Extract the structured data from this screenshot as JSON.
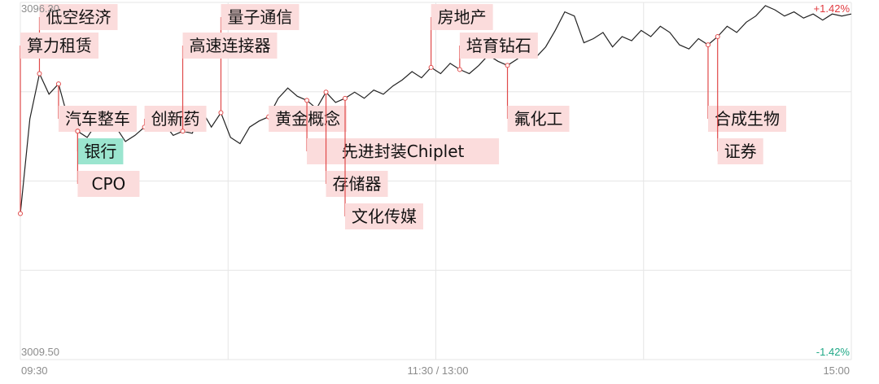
{
  "chart_data": {
    "type": "line",
    "y_top_label": "3096.30",
    "y_bottom_label": "3009.50",
    "pct_top_label": "+1.42%",
    "pct_bottom_label": "-1.42%",
    "x_labels": [
      "09:30",
      "11:30 / 13:00",
      "15:00"
    ],
    "ylim": [
      3009.5,
      3096.3
    ],
    "series": [
      {
        "color": "#222222",
        "points": [
          [
            0,
            3045.0
          ],
          [
            1,
            3068.0
          ],
          [
            2,
            3079.0
          ],
          [
            3,
            3074.0
          ],
          [
            4,
            3076.5
          ],
          [
            5,
            3068.0
          ],
          [
            6,
            3065.0
          ],
          [
            7,
            3063.5
          ],
          [
            8,
            3067.0
          ],
          [
            9,
            3065.0
          ],
          [
            10,
            3066.0
          ],
          [
            11,
            3062.5
          ],
          [
            12,
            3064.0
          ],
          [
            13,
            3066.0
          ],
          [
            14,
            3065.5
          ],
          [
            15,
            3067.0
          ],
          [
            16,
            3064.0
          ],
          [
            17,
            3065.0
          ],
          [
            18,
            3064.5
          ],
          [
            19,
            3070.0
          ],
          [
            20,
            3066.0
          ],
          [
            21,
            3069.5
          ],
          [
            22,
            3063.5
          ],
          [
            23,
            3062.0
          ],
          [
            24,
            3066.0
          ],
          [
            25,
            3067.5
          ],
          [
            26,
            3068.5
          ],
          [
            27,
            3073.0
          ],
          [
            28,
            3075.5
          ],
          [
            29,
            3073.5
          ],
          [
            30,
            3072.5
          ],
          [
            31,
            3070.5
          ],
          [
            32,
            3074.5
          ],
          [
            33,
            3072.0
          ],
          [
            34,
            3073.0
          ],
          [
            35,
            3074.5
          ],
          [
            36,
            3073.0
          ],
          [
            37,
            3075.0
          ],
          [
            38,
            3074.0
          ],
          [
            39,
            3076.0
          ],
          [
            40,
            3077.5
          ],
          [
            41,
            3079.5
          ],
          [
            42,
            3078.0
          ],
          [
            43,
            3080.5
          ],
          [
            44,
            3079.0
          ],
          [
            45,
            3081.5
          ],
          [
            46,
            3080.0
          ],
          [
            47,
            3079.0
          ],
          [
            48,
            3081.0
          ],
          [
            49,
            3083.5
          ],
          [
            50,
            3082.0
          ],
          [
            51,
            3081.0
          ],
          [
            52,
            3082.5
          ],
          [
            53,
            3084.5
          ],
          [
            54,
            3083.0
          ],
          [
            55,
            3085.5
          ],
          [
            56,
            3089.5
          ],
          [
            57,
            3094.0
          ],
          [
            58,
            3093.0
          ],
          [
            59,
            3086.5
          ],
          [
            60,
            3087.5
          ],
          [
            61,
            3089.0
          ],
          [
            62,
            3085.5
          ],
          [
            63,
            3088.0
          ],
          [
            64,
            3087.0
          ],
          [
            65,
            3089.5
          ],
          [
            66,
            3088.0
          ],
          [
            67,
            3090.5
          ],
          [
            68,
            3089.0
          ],
          [
            69,
            3086.0
          ],
          [
            70,
            3085.0
          ],
          [
            71,
            3087.5
          ],
          [
            72,
            3086.0
          ],
          [
            73,
            3088.0
          ],
          [
            74,
            3090.5
          ],
          [
            75,
            3089.0
          ],
          [
            76,
            3091.5
          ],
          [
            77,
            3093.0
          ],
          [
            78,
            3095.5
          ],
          [
            79,
            3094.5
          ],
          [
            80,
            3093.0
          ],
          [
            81,
            3094.0
          ],
          [
            82,
            3092.5
          ],
          [
            83,
            3093.5
          ],
          [
            84,
            3092.0
          ],
          [
            85,
            3093.5
          ],
          [
            86,
            3093.0
          ],
          [
            87,
            3093.5
          ]
        ]
      }
    ],
    "annotations": [
      {
        "label": "低空经济",
        "pi": 2,
        "side": "up",
        "color": "red"
      },
      {
        "label": "算力租赁",
        "pi": 0,
        "side": "up",
        "color": "red"
      },
      {
        "label": "汽车整车",
        "pi": 4,
        "side": "down",
        "color": "red"
      },
      {
        "label": "银行",
        "pi": 6,
        "side": "down",
        "color": "green"
      },
      {
        "label": "CPO",
        "pi": 6,
        "side": "down",
        "color": "red"
      },
      {
        "label": "创新药",
        "pi": 13,
        "side": "down",
        "color": "red"
      },
      {
        "label": "量子通信",
        "pi": 21,
        "side": "up",
        "color": "red"
      },
      {
        "label": "高速连接器",
        "pi": 17,
        "side": "up",
        "color": "red"
      },
      {
        "label": "黄金概念",
        "pi": 26,
        "side": "down",
        "color": "red"
      },
      {
        "label": "先进封装Chiplet",
        "pi": 30,
        "side": "down",
        "color": "red"
      },
      {
        "label": "存储器",
        "pi": 32,
        "side": "down",
        "color": "red"
      },
      {
        "label": "文化传媒",
        "pi": 34,
        "side": "down",
        "color": "red"
      },
      {
        "label": "房地产",
        "pi": 43,
        "side": "up",
        "color": "red"
      },
      {
        "label": "培育钻石",
        "pi": 46,
        "side": "up",
        "color": "red"
      },
      {
        "label": "氟化工",
        "pi": 51,
        "side": "down",
        "color": "red"
      },
      {
        "label": "合成生物",
        "pi": 72,
        "side": "down",
        "color": "red"
      },
      {
        "label": "证券",
        "pi": 73,
        "side": "down",
        "color": "red"
      }
    ]
  }
}
